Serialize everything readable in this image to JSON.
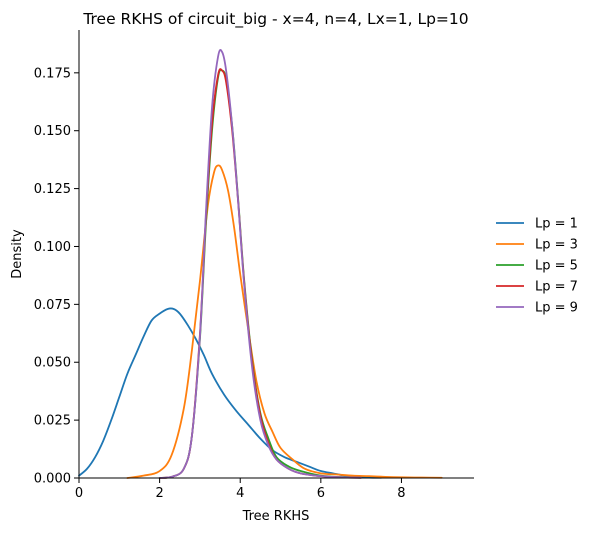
{
  "chart_data": {
    "type": "line",
    "title": "Tree RKHS of circuit_big - x=4, n=4, Lx=1, Lp=10",
    "xlabel": "Tree RKHS",
    "ylabel": "Density",
    "xlim": [
      0,
      9.8
    ],
    "ylim": [
      0,
      0.1935
    ],
    "xticks": [
      0,
      2,
      4,
      6,
      8
    ],
    "yticks": [
      0.0,
      0.025,
      0.05,
      0.075,
      0.1,
      0.125,
      0.15,
      0.175
    ],
    "ytick_labels": [
      "0.000",
      "0.025",
      "0.050",
      "0.075",
      "0.100",
      "0.125",
      "0.150",
      "0.175"
    ],
    "legend_position": "right",
    "grid": false,
    "series": [
      {
        "name": "Lp = 1",
        "color": "#1f77b4",
        "x": [
          0,
          0.2,
          0.4,
          0.6,
          0.8,
          1.0,
          1.2,
          1.4,
          1.6,
          1.8,
          2.0,
          2.2,
          2.35,
          2.5,
          2.7,
          2.9,
          3.1,
          3.3,
          3.6,
          3.9,
          4.2,
          4.5,
          4.8,
          5.1,
          5.4,
          5.7,
          6.0,
          6.3,
          6.6,
          6.9,
          7.2,
          7.5
        ],
        "y": [
          0.001,
          0.004,
          0.009,
          0.016,
          0.025,
          0.035,
          0.045,
          0.053,
          0.061,
          0.068,
          0.071,
          0.073,
          0.073,
          0.071,
          0.066,
          0.06,
          0.053,
          0.045,
          0.036,
          0.029,
          0.023,
          0.017,
          0.012,
          0.009,
          0.007,
          0.005,
          0.003,
          0.002,
          0.001,
          0.0005,
          0.0002,
          0.0001
        ]
      },
      {
        "name": "Lp = 3",
        "color": "#ff7f0e",
        "x": [
          1.2,
          1.6,
          2.0,
          2.3,
          2.6,
          2.8,
          3.0,
          3.2,
          3.35,
          3.45,
          3.55,
          3.7,
          3.85,
          4.0,
          4.2,
          4.4,
          4.6,
          4.8,
          5.0,
          5.3,
          5.6,
          6.0,
          6.4,
          6.8,
          7.2,
          7.6,
          8.0,
          8.5,
          9.0
        ],
        "y": [
          0.0,
          0.001,
          0.003,
          0.01,
          0.03,
          0.055,
          0.085,
          0.118,
          0.132,
          0.135,
          0.133,
          0.124,
          0.108,
          0.088,
          0.064,
          0.042,
          0.028,
          0.02,
          0.013,
          0.008,
          0.004,
          0.002,
          0.0015,
          0.001,
          0.0008,
          0.0005,
          0.0003,
          0.0002,
          0.0001
        ]
      },
      {
        "name": "Lp = 5",
        "color": "#2ca02c",
        "x": [
          2.0,
          2.3,
          2.6,
          2.8,
          3.0,
          3.15,
          3.3,
          3.45,
          3.55,
          3.65,
          3.8,
          3.95,
          4.1,
          4.3,
          4.5,
          4.7,
          4.9,
          5.2,
          5.5,
          6.0,
          6.5,
          7.0
        ],
        "y": [
          0.0,
          0.0005,
          0.004,
          0.018,
          0.06,
          0.11,
          0.15,
          0.173,
          0.176,
          0.172,
          0.152,
          0.12,
          0.085,
          0.05,
          0.028,
          0.017,
          0.009,
          0.005,
          0.003,
          0.001,
          0.0004,
          0.0001
        ]
      },
      {
        "name": "Lp = 7",
        "color": "#d62728",
        "x": [
          2.0,
          2.3,
          2.6,
          2.8,
          3.0,
          3.15,
          3.3,
          3.45,
          3.55,
          3.65,
          3.8,
          3.95,
          4.1,
          4.3,
          4.5,
          4.7,
          4.9,
          5.2,
          5.5,
          6.0,
          6.5,
          7.0
        ],
        "y": [
          0.0,
          0.0005,
          0.004,
          0.018,
          0.062,
          0.113,
          0.153,
          0.174,
          0.176,
          0.171,
          0.15,
          0.119,
          0.084,
          0.049,
          0.027,
          0.015,
          0.008,
          0.004,
          0.002,
          0.0008,
          0.0003,
          0.0001
        ]
      },
      {
        "name": "Lp = 9",
        "color": "#9467bd",
        "x": [
          2.0,
          2.3,
          2.6,
          2.8,
          3.0,
          3.15,
          3.3,
          3.45,
          3.55,
          3.65,
          3.8,
          3.95,
          4.1,
          4.3,
          4.5,
          4.7,
          4.9,
          5.2,
          5.5,
          6.0,
          6.5,
          7.0
        ],
        "y": [
          0.0,
          0.0005,
          0.004,
          0.018,
          0.061,
          0.115,
          0.16,
          0.182,
          0.184,
          0.176,
          0.152,
          0.119,
          0.083,
          0.047,
          0.025,
          0.014,
          0.008,
          0.004,
          0.002,
          0.0008,
          0.0003,
          0.0001
        ]
      }
    ]
  }
}
